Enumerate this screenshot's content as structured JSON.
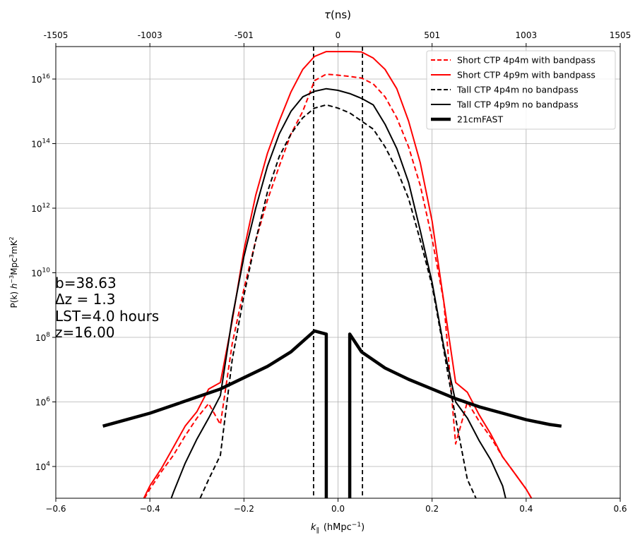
{
  "chart_data": {
    "type": "line",
    "xlabel_prefix": "k",
    "xlabel_sub": "∥",
    "xlabel_unit": "(hMpc",
    "xlabel_unit_sup": "−1",
    "xlabel_unit_end": ")",
    "x2label_main": "τ",
    "x2label_rest": "(ns)",
    "ylabel_main": "P(k) ",
    "ylabel_h": "h",
    "ylabel_hexp": "−3",
    "ylabel_mpc": "Mpc",
    "ylabel_mpcexp": "3",
    "ylabel_mk": "mK",
    "ylabel_mkexp": "2",
    "xlim": [
      -0.6,
      0.6
    ],
    "ylim_log10": [
      3,
      17
    ],
    "yscale": "log",
    "grid": true,
    "legend_position": "top-right",
    "xticks": [
      "−0.6",
      "−0.4",
      "−0.2",
      "0.0",
      "0.2",
      "0.4",
      "0.6"
    ],
    "xtick_values": [
      -0.6,
      -0.4,
      -0.2,
      0.0,
      0.2,
      0.4,
      0.6
    ],
    "top_ticks": [
      "-1505",
      "-1003",
      "-501",
      "0",
      "501",
      "1003",
      "1505"
    ],
    "yticks": [
      {
        "base": "10",
        "exp": "4",
        "log": 4
      },
      {
        "base": "10",
        "exp": "6",
        "log": 6
      },
      {
        "base": "10",
        "exp": "8",
        "log": 8
      },
      {
        "base": "10",
        "exp": "10",
        "log": 10
      },
      {
        "base": "10",
        "exp": "12",
        "log": 12
      },
      {
        "base": "10",
        "exp": "14",
        "log": 14
      },
      {
        "base": "10",
        "exp": "16",
        "log": 16
      }
    ],
    "annotations": [
      "b=38.63",
      "Δz = 1.3",
      "LST=4.0 hours",
      "z=16.00"
    ],
    "vertical_lines": [
      -0.052,
      0.052
    ],
    "series": [
      {
        "name": "Short CTP 4p4m with bandpass",
        "color": "#ff0000",
        "dash": "dashed",
        "width": 2,
        "points": [
          [
            -0.42,
            2.8
          ],
          [
            -0.4,
            3.3
          ],
          [
            -0.375,
            3.85
          ],
          [
            -0.35,
            4.35
          ],
          [
            -0.325,
            4.95
          ],
          [
            -0.3,
            5.5
          ],
          [
            -0.275,
            5.95
          ],
          [
            -0.25,
            5.3
          ],
          [
            -0.225,
            7.8
          ],
          [
            -0.2,
            9.5
          ],
          [
            -0.175,
            11.0
          ],
          [
            -0.15,
            12.25
          ],
          [
            -0.125,
            13.3
          ],
          [
            -0.1,
            14.3
          ],
          [
            -0.075,
            15.0
          ],
          [
            -0.05,
            15.95
          ],
          [
            -0.025,
            16.15
          ],
          [
            0.0,
            16.12
          ],
          [
            0.025,
            16.08
          ],
          [
            0.05,
            16.03
          ],
          [
            0.075,
            15.85
          ],
          [
            0.1,
            15.45
          ],
          [
            0.125,
            14.8
          ],
          [
            0.15,
            13.9
          ],
          [
            0.175,
            12.7
          ],
          [
            0.2,
            11.05
          ],
          [
            0.225,
            9.1
          ],
          [
            0.25,
            4.7
          ],
          [
            0.275,
            6.0
          ],
          [
            0.3,
            5.4
          ],
          [
            0.325,
            4.9
          ],
          [
            0.35,
            4.3
          ],
          [
            0.375,
            3.8
          ],
          [
            0.4,
            3.3
          ],
          [
            0.42,
            2.8
          ]
        ]
      },
      {
        "name": "Short CTP 4p9m with bandpass",
        "color": "#ff0000",
        "dash": "solid",
        "width": 2,
        "points": [
          [
            -0.42,
            2.8
          ],
          [
            -0.4,
            3.4
          ],
          [
            -0.375,
            3.95
          ],
          [
            -0.35,
            4.6
          ],
          [
            -0.325,
            5.25
          ],
          [
            -0.3,
            5.7
          ],
          [
            -0.275,
            6.4
          ],
          [
            -0.25,
            6.6
          ],
          [
            -0.225,
            8.5
          ],
          [
            -0.2,
            10.7
          ],
          [
            -0.175,
            12.4
          ],
          [
            -0.15,
            13.7
          ],
          [
            -0.125,
            14.7
          ],
          [
            -0.1,
            15.6
          ],
          [
            -0.075,
            16.3
          ],
          [
            -0.05,
            16.7
          ],
          [
            -0.025,
            16.85
          ],
          [
            0.0,
            16.85
          ],
          [
            0.025,
            16.85
          ],
          [
            0.05,
            16.84
          ],
          [
            0.075,
            16.65
          ],
          [
            0.1,
            16.3
          ],
          [
            0.125,
            15.7
          ],
          [
            0.15,
            14.7
          ],
          [
            0.175,
            13.4
          ],
          [
            0.2,
            11.6
          ],
          [
            0.225,
            9.1
          ],
          [
            0.25,
            6.6
          ],
          [
            0.275,
            6.3
          ],
          [
            0.3,
            5.6
          ],
          [
            0.325,
            5.0
          ],
          [
            0.35,
            4.3
          ],
          [
            0.375,
            3.8
          ],
          [
            0.4,
            3.3
          ],
          [
            0.42,
            2.8
          ]
        ]
      },
      {
        "name": "Tall CTP 4p4m no bandpass",
        "color": "#000000",
        "dash": "dashed",
        "width": 2,
        "points": [
          [
            -0.3,
            2.8
          ],
          [
            -0.275,
            3.6
          ],
          [
            -0.25,
            4.35
          ],
          [
            -0.225,
            7.3
          ],
          [
            -0.2,
            9.3
          ],
          [
            -0.175,
            11.0
          ],
          [
            -0.15,
            12.5
          ],
          [
            -0.125,
            13.6
          ],
          [
            -0.1,
            14.3
          ],
          [
            -0.075,
            14.8
          ],
          [
            -0.05,
            15.1
          ],
          [
            -0.025,
            15.2
          ],
          [
            0.0,
            15.1
          ],
          [
            0.025,
            14.95
          ],
          [
            0.05,
            14.7
          ],
          [
            0.075,
            14.45
          ],
          [
            0.1,
            13.9
          ],
          [
            0.125,
            13.2
          ],
          [
            0.15,
            12.3
          ],
          [
            0.175,
            11.0
          ],
          [
            0.2,
            9.6
          ],
          [
            0.225,
            7.6
          ],
          [
            0.25,
            5.5
          ],
          [
            0.275,
            3.6
          ],
          [
            0.3,
            2.8
          ]
        ]
      },
      {
        "name": "Tall CTP 4p9m no bandpass",
        "color": "#000000",
        "dash": "solid",
        "width": 2,
        "points": [
          [
            -0.36,
            2.8
          ],
          [
            -0.35,
            3.2
          ],
          [
            -0.325,
            4.1
          ],
          [
            -0.3,
            4.85
          ],
          [
            -0.275,
            5.5
          ],
          [
            -0.25,
            6.2
          ],
          [
            -0.225,
            8.6
          ],
          [
            -0.2,
            10.5
          ],
          [
            -0.175,
            12.0
          ],
          [
            -0.15,
            13.3
          ],
          [
            -0.125,
            14.3
          ],
          [
            -0.1,
            15.0
          ],
          [
            -0.075,
            15.45
          ],
          [
            -0.05,
            15.62
          ],
          [
            -0.025,
            15.7
          ],
          [
            0.0,
            15.65
          ],
          [
            0.025,
            15.55
          ],
          [
            0.05,
            15.4
          ],
          [
            0.075,
            15.2
          ],
          [
            0.1,
            14.6
          ],
          [
            0.125,
            13.85
          ],
          [
            0.15,
            12.8
          ],
          [
            0.175,
            11.3
          ],
          [
            0.2,
            9.7
          ],
          [
            0.225,
            7.7
          ],
          [
            0.25,
            6.0
          ],
          [
            0.275,
            5.5
          ],
          [
            0.3,
            4.8
          ],
          [
            0.325,
            4.2
          ],
          [
            0.35,
            3.4
          ],
          [
            0.36,
            2.8
          ]
        ]
      },
      {
        "name": "21cmFAST",
        "color": "#000000",
        "dash": "solid",
        "width": 4.5,
        "points": [
          [
            -0.5,
            5.25
          ],
          [
            -0.45,
            5.45
          ],
          [
            -0.4,
            5.65
          ],
          [
            -0.35,
            5.9
          ],
          [
            -0.3,
            6.15
          ],
          [
            -0.25,
            6.4
          ],
          [
            -0.2,
            6.75
          ],
          [
            -0.15,
            7.1
          ],
          [
            -0.1,
            7.55
          ],
          [
            -0.05,
            8.2
          ],
          [
            -0.025,
            8.1
          ],
          [
            -0.025,
            2.8
          ]
        ],
        "points2": [
          [
            0.025,
            2.8
          ],
          [
            0.025,
            8.1
          ],
          [
            0.05,
            7.55
          ],
          [
            0.1,
            7.05
          ],
          [
            0.15,
            6.7
          ],
          [
            0.2,
            6.4
          ],
          [
            0.25,
            6.1
          ],
          [
            0.3,
            5.85
          ],
          [
            0.35,
            5.65
          ],
          [
            0.4,
            5.45
          ],
          [
            0.45,
            5.3
          ],
          [
            0.475,
            5.25
          ]
        ]
      }
    ]
  }
}
